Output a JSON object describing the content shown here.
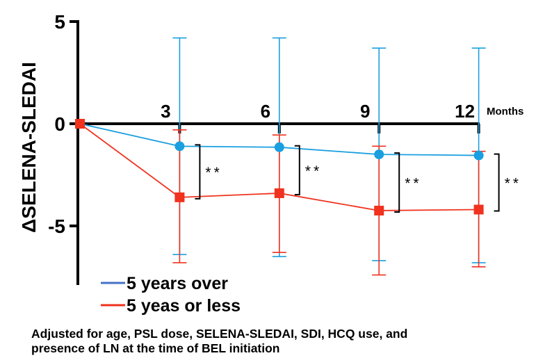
{
  "chart_data": {
    "type": "line",
    "ylabel": "ΔSELENA-SLEDAI",
    "x_unit_label": "Months",
    "x": [
      0,
      3,
      6,
      9,
      12
    ],
    "x_tick_labels": [
      "3",
      "6",
      "9",
      "12"
    ],
    "y_ticks": [
      5,
      0,
      -5
    ],
    "y_tick_labels": [
      "5",
      "0",
      "-5"
    ],
    "ylim": [
      -8,
      5
    ],
    "series": [
      {
        "name": "5 years over",
        "color": "#1a9fe0",
        "legend_color": "#4472c4",
        "marker": "circle",
        "values": [
          0,
          -1.1,
          -1.15,
          -1.5,
          -1.55
        ],
        "err_low": [
          0,
          -6.4,
          -6.5,
          -6.7,
          -6.8
        ],
        "err_high": [
          0,
          4.2,
          4.2,
          3.7,
          3.7
        ]
      },
      {
        "name": "5 yeas or less",
        "color": "#f0321e",
        "legend_color": "#f0321e",
        "marker": "square",
        "values": [
          0,
          -3.6,
          -3.4,
          -4.25,
          -4.2
        ],
        "err_low": [
          0,
          -6.8,
          -6.3,
          -7.4,
          -7.0
        ],
        "err_high": [
          0,
          -0.3,
          -0.55,
          -1.1,
          -1.35
        ]
      }
    ],
    "significance_label": "**"
  },
  "footnote": {
    "line1": "Adjusted for age, PSL dose, SELENA-SLEDAI, SDI, HCQ use, and",
    "line2": "presence of LN at the time of BEL initiation"
  }
}
